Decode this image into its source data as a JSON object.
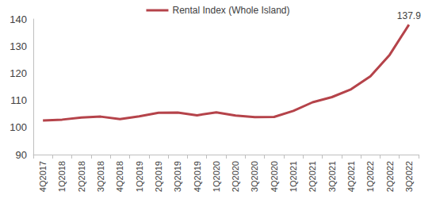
{
  "chart_data": {
    "type": "line",
    "categories": [
      "4Q2017",
      "1Q2018",
      "2Q2018",
      "3Q2018",
      "4Q2018",
      "1Q2019",
      "2Q2019",
      "3Q2019",
      "4Q2019",
      "1Q2020",
      "2Q2020",
      "3Q2020",
      "4Q2020",
      "1Q2021",
      "2Q2021",
      "3Q2021",
      "4Q2021",
      "1Q2022",
      "2Q2022",
      "3Q2022"
    ],
    "series": [
      {
        "name": "Rental Index (Whole Island)",
        "color": "#b5434a",
        "values": [
          102.6,
          102.9,
          103.7,
          104.0,
          103.1,
          104.1,
          105.4,
          105.5,
          104.5,
          105.6,
          104.4,
          103.8,
          103.9,
          106.1,
          109.3,
          111.2,
          114.1,
          118.9,
          126.8,
          137.9
        ],
        "value_labels": [
          null,
          null,
          null,
          null,
          null,
          null,
          null,
          null,
          null,
          null,
          null,
          null,
          null,
          null,
          null,
          null,
          null,
          null,
          null,
          "137.9"
        ]
      }
    ],
    "ylim": [
      90,
      140
    ],
    "yticks": [
      90,
      100,
      110,
      120,
      130,
      140
    ],
    "grid": false,
    "legend": "top",
    "data_labels": true
  }
}
